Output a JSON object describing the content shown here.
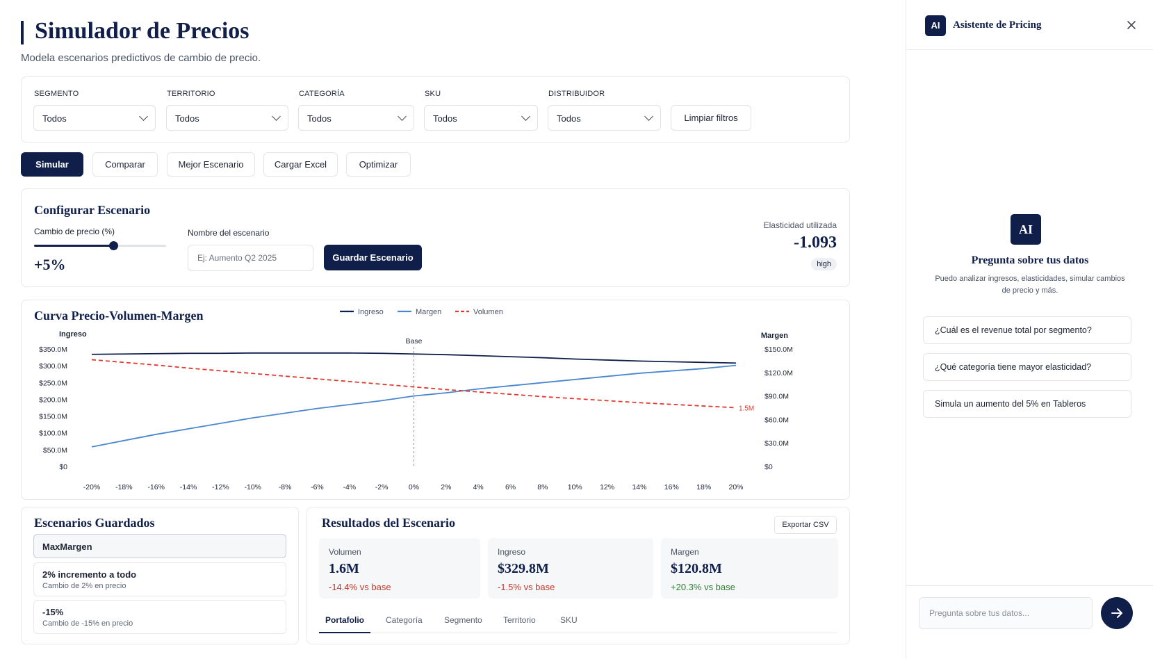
{
  "header": {
    "title": "Simulador de Precios",
    "subtitle": "Modela escenarios predictivos de cambio de precio."
  },
  "filters": [
    {
      "label": "SEGMENTO",
      "value": "Todos"
    },
    {
      "label": "TERRITORIO",
      "value": "Todos"
    },
    {
      "label": "CATEGORÍA",
      "value": "Todos"
    },
    {
      "label": "SKU",
      "value": "Todos"
    },
    {
      "label": "DISTRIBUIDOR",
      "value": "Todos"
    }
  ],
  "clear_filters_label": "Limpiar filtros",
  "actions": [
    "Simular",
    "Comparar",
    "Mejor Escenario",
    "Cargar Excel",
    "Optimizar"
  ],
  "config": {
    "title": "Configurar Escenario",
    "slider_label": "Cambio de precio (%)",
    "slider_value": "+5%",
    "slider_fraction": 0.6,
    "name_label": "Nombre del escenario",
    "name_placeholder": "Ej: Aumento Q2 2025",
    "save_label": "Guardar Escenario",
    "elasticity_label": "Elasticidad utilizada",
    "elasticity_value": "-1.093",
    "elasticity_badge": "high"
  },
  "chart_data": {
    "type": "line",
    "title": "Curva Precio-Volumen-Margen",
    "left_axis_label": "Ingreso",
    "right_axis_label": "Margen",
    "legend": [
      "Ingreso",
      "Margen",
      "Volumen"
    ],
    "legend_placement": "top-center",
    "base_label": "Base",
    "end_label": "1.5M",
    "x": [
      "-20%",
      "-18%",
      "-16%",
      "-14%",
      "-12%",
      "-10%",
      "-8%",
      "-6%",
      "-4%",
      "-2%",
      "0%",
      "2%",
      "4%",
      "6%",
      "8%",
      "10%",
      "12%",
      "14%",
      "16%",
      "18%",
      "20%"
    ],
    "y_left_ticks": [
      "$0",
      "$50.0M",
      "$100.0M",
      "$150.0M",
      "$200.0M",
      "$250.0M",
      "$300.0M",
      "$350.0M"
    ],
    "y_right_ticks": [
      "$0",
      "$30.0M",
      "$60.0M",
      "$90.0M",
      "$120.0M",
      "$150.0M"
    ],
    "ylim_left": [
      0,
      350
    ],
    "ylim_right": [
      0,
      150
    ],
    "series": [
      {
        "name": "Ingreso",
        "axis": "left",
        "color": "#0f1f4a",
        "dashed": false,
        "values": [
          334,
          335,
          336,
          337,
          337,
          338,
          338,
          338,
          338,
          337,
          335,
          333,
          330,
          327,
          324,
          320,
          317,
          314,
          312,
          310,
          308
        ]
      },
      {
        "name": "Margen",
        "axis": "right",
        "color": "#4a86d0",
        "dashed": false,
        "values": [
          25,
          33,
          41,
          48,
          55,
          62,
          68,
          74,
          79,
          84,
          90,
          94,
          99,
          103,
          107,
          111,
          115,
          119,
          122,
          125,
          129
        ]
      },
      {
        "name": "Volumen",
        "axis": "left",
        "color": "#e03a30",
        "dashed": true,
        "values": [
          318,
          310,
          302,
          293,
          285,
          277,
          269,
          261,
          253,
          245,
          237,
          229,
          222,
          215,
          208,
          202,
          196,
          190,
          185,
          180,
          175
        ]
      }
    ]
  },
  "saved": {
    "title": "Escenarios Guardados",
    "items": [
      {
        "title": "MaxMargen",
        "sub": ""
      },
      {
        "title": "2% incremento a todo",
        "sub": "Cambio de 2% en precio"
      },
      {
        "title": "-15%",
        "sub": "Cambio de -15% en precio"
      }
    ]
  },
  "results": {
    "title": "Resultados del Escenario",
    "export_label": "Exportar CSV",
    "metrics": [
      {
        "label": "Volumen",
        "value": "1.6M",
        "delta": "-14.4% vs base",
        "trend": "neg"
      },
      {
        "label": "Ingreso",
        "value": "$329.8M",
        "delta": "-1.5% vs base",
        "trend": "neg"
      },
      {
        "label": "Margen",
        "value": "$120.8M",
        "delta": "+20.3% vs base",
        "trend": "pos"
      }
    ],
    "tabs": [
      "Portafolio",
      "Categoría",
      "Segmento",
      "Territorio",
      "SKU"
    ],
    "active_tab": "Portafolio"
  },
  "sidebar": {
    "logo_text": "AI",
    "title": "Asistente de Pricing",
    "heading": "Pregunta sobre tus datos",
    "description": "Puedo analizar ingresos, elasticidades, simular cambios de precio y más.",
    "suggestions": [
      "¿Cuál es el revenue total por segmento?",
      "¿Qué categoría tiene mayor elasticidad?",
      "Simula un aumento del 5% en Tableros"
    ],
    "input_placeholder": "Pregunta sobre tus datos..."
  },
  "colors": {
    "primary": "#0f1f4a",
    "margin_line": "#4a86d0",
    "volume_line": "#e03a30",
    "negative": "#c0392b",
    "positive": "#2e7d32"
  },
  "icons": [
    "chevron-down-icon",
    "close-icon",
    "arrow-right-icon"
  ]
}
